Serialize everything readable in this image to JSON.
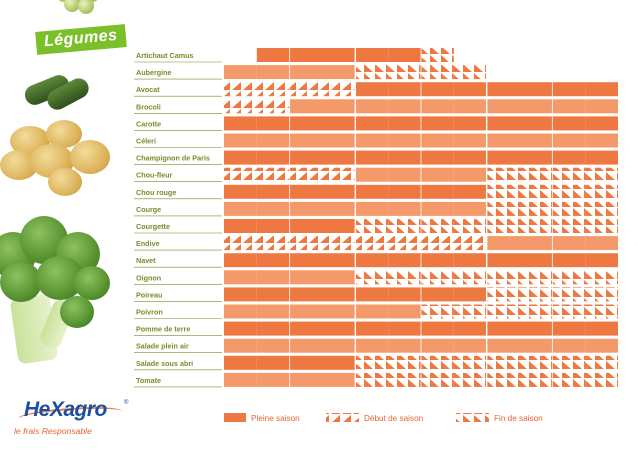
{
  "title": "Légumes",
  "brand": {
    "name": "HeXagro",
    "registered": "®",
    "tagline": "le frais Responsable"
  },
  "colors": {
    "full": "#ee7842",
    "light": "#f49a6a",
    "label": "#7a8c2a",
    "grid": "#ffffff",
    "title_bg": "#7bbf2a"
  },
  "chart_data": {
    "type": "table",
    "periods": 12,
    "codes": {
      "F": "Pleine saison",
      "D": "Début de saison",
      "E": "Fin de saison",
      "O": "hors saison"
    },
    "legend": [
      {
        "code": "F",
        "label": "Pleine saison"
      },
      {
        "code": "D",
        "label": "Début de saison"
      },
      {
        "code": "E",
        "label": "Fin de saison"
      }
    ],
    "rows": [
      {
        "name": "Artichaut Camus",
        "cells": [
          "O",
          "F",
          "F",
          "F",
          "F",
          "F",
          "E",
          "O",
          "O",
          "O",
          "O",
          "O"
        ]
      },
      {
        "name": "Aubergine",
        "cells": [
          "F",
          "F",
          "F",
          "F",
          "E",
          "E",
          "E",
          "E",
          "O",
          "O",
          "O",
          "O"
        ]
      },
      {
        "name": "Avocat",
        "cells": [
          "D",
          "D",
          "D",
          "D",
          "F",
          "F",
          "F",
          "F",
          "F",
          "F",
          "F",
          "F"
        ]
      },
      {
        "name": "Brocoli",
        "cells": [
          "D",
          "D",
          "F",
          "F",
          "F",
          "F",
          "F",
          "F",
          "F",
          "F",
          "F",
          "F"
        ]
      },
      {
        "name": "Carotte",
        "cells": [
          "F",
          "F",
          "F",
          "F",
          "F",
          "F",
          "F",
          "F",
          "F",
          "F",
          "F",
          "F"
        ]
      },
      {
        "name": "Céleri",
        "cells": [
          "F",
          "F",
          "F",
          "F",
          "F",
          "F",
          "F",
          "F",
          "F",
          "F",
          "F",
          "F"
        ]
      },
      {
        "name": "Champignon de Paris",
        "cells": [
          "F",
          "F",
          "F",
          "F",
          "F",
          "F",
          "F",
          "F",
          "F",
          "F",
          "F",
          "F"
        ]
      },
      {
        "name": "Chou-fleur",
        "cells": [
          "D",
          "D",
          "D",
          "D",
          "F",
          "F",
          "F",
          "F",
          "E",
          "E",
          "E",
          "E"
        ]
      },
      {
        "name": "Chou rouge",
        "cells": [
          "F",
          "F",
          "F",
          "F",
          "F",
          "F",
          "F",
          "F",
          "E",
          "E",
          "E",
          "E"
        ]
      },
      {
        "name": "Courge",
        "cells": [
          "F",
          "F",
          "F",
          "F",
          "F",
          "F",
          "F",
          "F",
          "E",
          "E",
          "E",
          "E"
        ]
      },
      {
        "name": "Courgette",
        "cells": [
          "F",
          "F",
          "F",
          "F",
          "E",
          "E",
          "E",
          "E",
          "E",
          "E",
          "E",
          "E"
        ]
      },
      {
        "name": "Endive",
        "cells": [
          "D",
          "D",
          "D",
          "D",
          "D",
          "D",
          "D",
          "D",
          "F",
          "F",
          "F",
          "F"
        ]
      },
      {
        "name": "Navet",
        "cells": [
          "F",
          "F",
          "F",
          "F",
          "F",
          "F",
          "F",
          "F",
          "F",
          "F",
          "F",
          "F"
        ]
      },
      {
        "name": "Oignon",
        "cells": [
          "F",
          "F",
          "F",
          "F",
          "E",
          "E",
          "E",
          "E",
          "E",
          "E",
          "E",
          "E"
        ]
      },
      {
        "name": "Poireau",
        "cells": [
          "F",
          "F",
          "F",
          "F",
          "F",
          "F",
          "F",
          "F",
          "E",
          "E",
          "E",
          "E"
        ]
      },
      {
        "name": "Poivron",
        "cells": [
          "F",
          "F",
          "F",
          "F",
          "F",
          "F",
          "E",
          "E",
          "E",
          "E",
          "E",
          "E"
        ]
      },
      {
        "name": "Pomme de terre",
        "cells": [
          "F",
          "F",
          "F",
          "F",
          "F",
          "F",
          "F",
          "F",
          "F",
          "F",
          "F",
          "F"
        ]
      },
      {
        "name": "Salade plein air",
        "cells": [
          "F",
          "F",
          "F",
          "F",
          "F",
          "F",
          "F",
          "F",
          "F",
          "F",
          "F",
          "F"
        ]
      },
      {
        "name": "Salade sous abri",
        "cells": [
          "F",
          "F",
          "F",
          "F",
          "E",
          "E",
          "E",
          "E",
          "E",
          "E",
          "E",
          "E"
        ]
      },
      {
        "name": "Tomate",
        "cells": [
          "F",
          "F",
          "F",
          "F",
          "E",
          "E",
          "E",
          "E",
          "E",
          "E",
          "E",
          "E"
        ]
      }
    ]
  }
}
